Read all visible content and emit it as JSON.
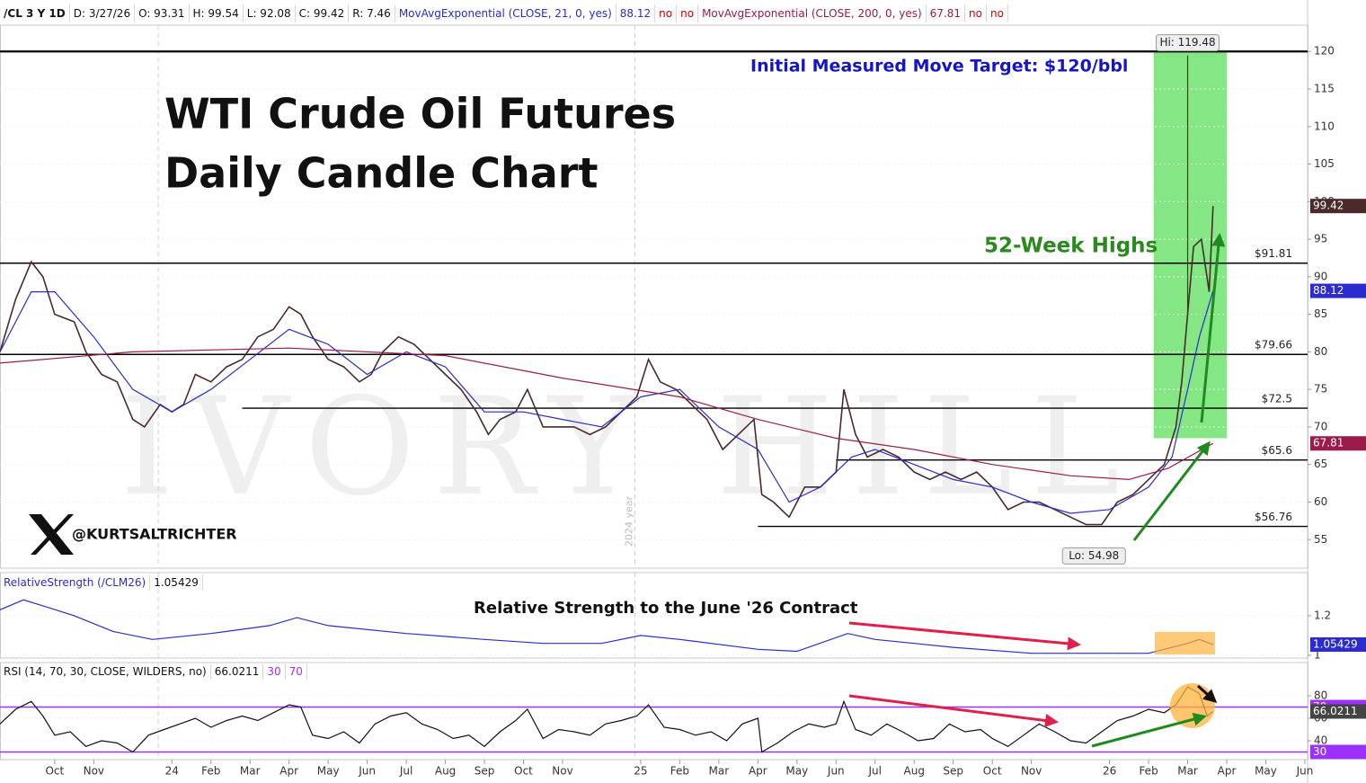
{
  "header": {
    "symbol": "/CL 3 Y 1D",
    "items": [
      "D: 3/27/26",
      "O: 93.31",
      "H: 99.54",
      "L: 92.08",
      "C: 99.42",
      "R: 7.46"
    ]
  },
  "chart_data": [
    {
      "type": "line",
      "title": "WTI Crude Oil Futures",
      "subtitle": "Daily Candle Chart",
      "watermark": "IVORY HILL",
      "handle": "@KURTSALTRICHTER",
      "annotations": [
        {
          "text": "Initial Measured Move Target: $120/bbl",
          "color": "#1515c8"
        },
        {
          "text": "52-Week Highs",
          "color": "#2a8a1e"
        }
      ],
      "xlim": [
        -1.4,
        32.07
      ],
      "xticks": [
        {
          "value": 0,
          "label": "Oct"
        },
        {
          "value": 1,
          "label": "Nov"
        },
        {
          "value": 3,
          "label": "24"
        },
        {
          "value": 4,
          "label": "Feb"
        },
        {
          "value": 5,
          "label": "Mar"
        },
        {
          "value": 6,
          "label": "Apr"
        },
        {
          "value": 7,
          "label": "May"
        },
        {
          "value": 8,
          "label": "Jun"
        },
        {
          "value": 9,
          "label": "Jul"
        },
        {
          "value": 10,
          "label": "Aug"
        },
        {
          "value": 11,
          "label": "Sep"
        },
        {
          "value": 12,
          "label": "Oct"
        },
        {
          "value": 13,
          "label": "Nov"
        },
        {
          "value": 15,
          "label": "25"
        },
        {
          "value": 16,
          "label": "Feb"
        },
        {
          "value": 17,
          "label": "Mar"
        },
        {
          "value": 18,
          "label": "Apr"
        },
        {
          "value": 19,
          "label": "May"
        },
        {
          "value": 20,
          "label": "Jun"
        },
        {
          "value": 21,
          "label": "Jul"
        },
        {
          "value": 22,
          "label": "Aug"
        },
        {
          "value": 23,
          "label": "Sep"
        },
        {
          "value": 24,
          "label": "Oct"
        },
        {
          "value": 25,
          "label": "Nov"
        },
        {
          "value": 27,
          "label": "26"
        },
        {
          "value": 28,
          "label": "Feb"
        },
        {
          "value": 29,
          "label": "Mar"
        },
        {
          "value": 30,
          "label": "Apr"
        },
        {
          "value": 31,
          "label": "May"
        },
        {
          "value": 32,
          "label": "Jun"
        }
      ],
      "separators": [
        {
          "x": 2.65
        },
        {
          "x": 14.85,
          "label": "2024 year"
        }
      ],
      "ylim": [
        51.2,
        123.5
      ],
      "yticks": [
        55,
        60,
        65,
        70,
        75,
        80,
        85,
        90,
        95,
        100,
        105,
        110,
        115,
        120
      ],
      "levels": [
        {
          "value": 120,
          "start": -1.4
        },
        {
          "value": 91.81,
          "label": "$91.81",
          "start": -1.4
        },
        {
          "value": 79.66,
          "label": "$79.66",
          "start": -1.4
        },
        {
          "value": 72.5,
          "label": "$72.5",
          "start": 4.8
        },
        {
          "value": 65.6,
          "label": "$65.6",
          "start": 20
        },
        {
          "value": 56.76,
          "label": "$56.76",
          "start": 18
        }
      ],
      "highlight": {
        "x": [
          28.13,
          30.0
        ],
        "y": [
          68.5,
          120
        ],
        "color": "#6ee36e"
      },
      "extremes": [
        {
          "x": 29.0,
          "value": 119.48,
          "label": "Hi: 119.48"
        },
        {
          "x": 26.6,
          "value": 54.98,
          "label": "Lo: 54.98"
        }
      ],
      "series": [
        {
          "color": "#4a2a2a",
          "x": [
            -1.4,
            -1.0,
            -0.6,
            -0.3,
            0,
            0.5,
            0.8,
            1.2,
            1.6,
            2.0,
            2.3,
            2.7,
            3.0,
            3.3,
            3.6,
            4.0,
            4.4,
            4.8,
            5.2,
            5.6,
            6.0,
            6.3,
            6.6,
            7.0,
            7.4,
            7.8,
            8.1,
            8.4,
            8.8,
            9.2,
            9.6,
            10.0,
            10.4,
            10.8,
            11.1,
            11.4,
            11.8,
            12.1,
            12.5,
            12.9,
            13.3,
            13.7,
            14.1,
            14.5,
            14.9,
            15.2,
            15.5,
            15.9,
            16.3,
            16.7,
            17.1,
            17.5,
            17.9,
            18.1,
            18.4,
            18.8,
            19.2,
            19.6,
            20.0,
            20.2,
            20.5,
            20.8,
            21.2,
            21.6,
            22.0,
            22.4,
            22.8,
            23.2,
            23.6,
            24.0,
            24.4,
            24.8,
            25.2,
            25.6,
            26.0,
            26.4,
            26.8,
            27.2,
            27.6,
            28.0,
            28.4,
            28.7,
            28.85,
            29.0,
            29.15,
            29.35,
            29.55,
            29.65
          ],
          "values": [
            80,
            87,
            92,
            90,
            85,
            84,
            80,
            77,
            76,
            71,
            70,
            73,
            72,
            73,
            77,
            76,
            78,
            79,
            82,
            83,
            86,
            85,
            82,
            79,
            78,
            76,
            77,
            80,
            82,
            81,
            79,
            77,
            75,
            72,
            69,
            71,
            72,
            75,
            70,
            70,
            70,
            69,
            70,
            72,
            74,
            79,
            76,
            75,
            73,
            71,
            67,
            69,
            71,
            61,
            60,
            58,
            62,
            62,
            64,
            75,
            69,
            66,
            67,
            66,
            64,
            63,
            64,
            63,
            64,
            62,
            59,
            60,
            60,
            59,
            58,
            57,
            57,
            60,
            61,
            63,
            65,
            70,
            76,
            85,
            94,
            95,
            88,
            99.42
          ]
        },
        {
          "name": "MovAvgExponential (CLOSE, 21, 0, yes)",
          "flags": [
            "no",
            "no"
          ],
          "color": "#2b2bd0",
          "x": [
            -1.4,
            -0.6,
            0,
            1,
            2,
            3,
            4,
            5,
            6,
            7,
            8,
            9,
            10,
            11,
            12,
            13,
            14,
            15,
            16,
            17,
            18,
            18.8,
            19.6,
            20.4,
            21,
            22,
            23,
            24,
            25,
            26,
            27,
            28,
            28.6,
            29,
            29.3,
            29.65
          ],
          "values": [
            80,
            88,
            88,
            82,
            75,
            72,
            75,
            79,
            83,
            81,
            77,
            80,
            78,
            72,
            72,
            71,
            70,
            74,
            75,
            70,
            67,
            60,
            62,
            66,
            67,
            65,
            63,
            62,
            60,
            58.5,
            59,
            62,
            66,
            75,
            82,
            88.12
          ]
        },
        {
          "name": "MovAvgExponential (CLOSE, 200, 0, yes)",
          "flags": [
            "no",
            "no"
          ],
          "color": "#9b1b4b",
          "x": [
            -1.4,
            2,
            6,
            10,
            13,
            16,
            18,
            20,
            22,
            24,
            26,
            27.5,
            28.5,
            29.65
          ],
          "values": [
            78.5,
            80,
            80.5,
            79.5,
            76.5,
            74,
            71,
            68.5,
            67,
            65,
            63.5,
            63,
            64.5,
            67.81
          ]
        }
      ]
    },
    {
      "type": "line",
      "annotations": [
        {
          "text": "Relative Strength to the June '26 Contract",
          "color": "#111111"
        }
      ],
      "ylim": [
        0.986,
        1.418
      ],
      "yticks": [
        1,
        1.2
      ],
      "series": [
        {
          "name": "RelativeStrength (/CLM26)",
          "color": "#2b2bd0",
          "x": [
            -1.4,
            -0.8,
            -0.3,
            0.5,
            1.5,
            2.5,
            4,
            5.5,
            6.2,
            7,
            9,
            11,
            12.5,
            14,
            15,
            16,
            18,
            19,
            20.3,
            21,
            23,
            25,
            26.5,
            28,
            29,
            29.3,
            29.65
          ],
          "values": [
            1.23,
            1.28,
            1.25,
            1.2,
            1.12,
            1.08,
            1.11,
            1.15,
            1.19,
            1.15,
            1.11,
            1.08,
            1.06,
            1.06,
            1.1,
            1.08,
            1.03,
            1.02,
            1.11,
            1.08,
            1.04,
            1.01,
            1.01,
            1.01,
            1.06,
            1.08,
            1.05429
          ]
        }
      ]
    },
    {
      "type": "line",
      "ylim": [
        23.2,
        109.6
      ],
      "yticks": [
        40,
        60,
        80
      ],
      "levels": [
        {
          "value": 30,
          "color": "#9b30ff"
        },
        {
          "value": 70,
          "color": "#9b30ff"
        }
      ],
      "series": [
        {
          "name": "RSI (14, 70, 30, CLOSE, WILDERS, no)",
          "color": "#111111",
          "x": [
            -1.4,
            -1,
            -0.6,
            -0.3,
            0,
            0.4,
            0.8,
            1.2,
            1.6,
            2,
            2.4,
            2.8,
            3.2,
            3.6,
            4,
            4.4,
            4.8,
            5.2,
            5.6,
            6,
            6.3,
            6.6,
            7,
            7.4,
            7.8,
            8.2,
            8.6,
            9,
            9.4,
            9.8,
            10.2,
            10.6,
            11,
            11.4,
            11.8,
            12.1,
            12.5,
            12.9,
            13.3,
            13.7,
            14.1,
            14.5,
            14.9,
            15.2,
            15.6,
            16,
            16.4,
            16.8,
            17.2,
            17.6,
            18,
            18.1,
            18.5,
            18.9,
            19.3,
            19.7,
            20,
            20.2,
            20.5,
            20.9,
            21.3,
            21.7,
            22.1,
            22.5,
            22.9,
            23.3,
            23.7,
            24,
            24.4,
            24.8,
            25.2,
            25.6,
            26,
            26.4,
            26.8,
            27.2,
            27.6,
            28,
            28.4,
            28.7,
            29,
            29.3,
            29.5,
            29.65
          ],
          "values": [
            55,
            68,
            75,
            62,
            45,
            48,
            35,
            40,
            38,
            30,
            45,
            50,
            55,
            60,
            52,
            58,
            62,
            58,
            65,
            72,
            70,
            45,
            42,
            48,
            38,
            55,
            62,
            65,
            55,
            50,
            42,
            45,
            35,
            48,
            58,
            68,
            42,
            50,
            48,
            45,
            55,
            58,
            62,
            72,
            52,
            50,
            45,
            48,
            40,
            55,
            60,
            30,
            38,
            48,
            55,
            52,
            55,
            75,
            50,
            45,
            55,
            48,
            40,
            42,
            55,
            48,
            50,
            42,
            35,
            45,
            55,
            48,
            40,
            38,
            48,
            58,
            62,
            68,
            65,
            72,
            88,
            82,
            62,
            66.0211
          ]
        }
      ]
    }
  ]
}
